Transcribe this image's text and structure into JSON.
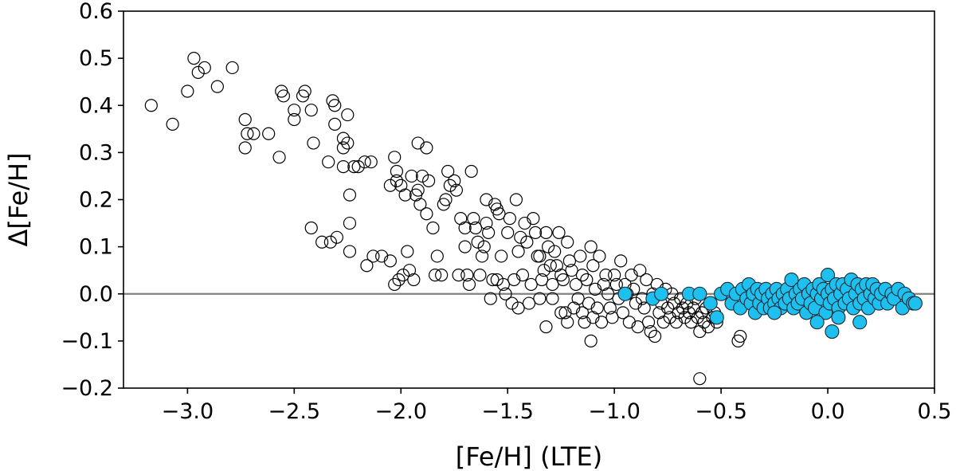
{
  "chart_data": {
    "type": "scatter",
    "title": "",
    "xlabel": "[Fe/H] (LTE)",
    "ylabel": "Δ[Fe/H]",
    "xlim": [
      -3.3,
      0.5
    ],
    "ylim": [
      -0.2,
      0.6
    ],
    "xticks": [
      -3.0,
      -2.5,
      -2.0,
      -1.5,
      -1.0,
      -0.5,
      0.0,
      0.5
    ],
    "xtick_labels": [
      "−3.0",
      "−2.5",
      "−2.0",
      "−1.5",
      "−1.0",
      "−0.5",
      "0.0",
      "0.5"
    ],
    "yticks": [
      -0.2,
      -0.1,
      0.0,
      0.1,
      0.2,
      0.3,
      0.4,
      0.5,
      0.6
    ],
    "ytick_labels": [
      "−0.2",
      "−0.1",
      "0.0",
      "0.1",
      "0.2",
      "0.3",
      "0.4",
      "0.5",
      "0.6"
    ],
    "reference_line": {
      "y": 0.0,
      "color": "#808080"
    },
    "grid": false,
    "series": [
      {
        "name": "open",
        "marker": "open-circle",
        "color": "#000000",
        "points": [
          [
            -3.17,
            0.4
          ],
          [
            -3.07,
            0.36
          ],
          [
            -2.97,
            0.5
          ],
          [
            -2.95,
            0.47
          ],
          [
            -2.92,
            0.48
          ],
          [
            -3.0,
            0.43
          ],
          [
            -2.86,
            0.44
          ],
          [
            -2.79,
            0.48
          ],
          [
            -2.73,
            0.37
          ],
          [
            -2.72,
            0.34
          ],
          [
            -2.73,
            0.31
          ],
          [
            -2.69,
            0.34
          ],
          [
            -2.62,
            0.34
          ],
          [
            -2.57,
            0.29
          ],
          [
            -2.56,
            0.43
          ],
          [
            -2.55,
            0.42
          ],
          [
            -2.5,
            0.39
          ],
          [
            -2.5,
            0.37
          ],
          [
            -2.46,
            0.42
          ],
          [
            -2.45,
            0.43
          ],
          [
            -2.42,
            0.39
          ],
          [
            -2.41,
            0.32
          ],
          [
            -2.42,
            0.14
          ],
          [
            -2.37,
            0.11
          ],
          [
            -2.33,
            0.11
          ],
          [
            -2.34,
            0.28
          ],
          [
            -2.32,
            0.41
          ],
          [
            -2.31,
            0.4
          ],
          [
            -2.31,
            0.36
          ],
          [
            -2.3,
            0.12
          ],
          [
            -2.27,
            0.33
          ],
          [
            -2.27,
            0.31
          ],
          [
            -2.25,
            0.32
          ],
          [
            -2.27,
            0.27
          ],
          [
            -2.25,
            0.38
          ],
          [
            -2.24,
            0.21
          ],
          [
            -2.24,
            0.15
          ],
          [
            -2.24,
            0.09
          ],
          [
            -2.22,
            0.27
          ],
          [
            -2.2,
            0.27
          ],
          [
            -2.17,
            0.28
          ],
          [
            -2.14,
            0.28
          ],
          [
            -2.16,
            0.06
          ],
          [
            -2.13,
            0.08
          ],
          [
            -2.09,
            0.08
          ],
          [
            -2.05,
            0.07
          ],
          [
            -2.03,
            0.02
          ],
          [
            -2.01,
            0.03
          ],
          [
            -1.99,
            0.04
          ],
          [
            -1.97,
            0.09
          ],
          [
            -1.96,
            0.05
          ],
          [
            -1.94,
            0.03
          ],
          [
            -2.05,
            0.23
          ],
          [
            -2.03,
            0.29
          ],
          [
            -2.02,
            0.26
          ],
          [
            -2.02,
            0.24
          ],
          [
            -2.0,
            0.23
          ],
          [
            -1.98,
            0.21
          ],
          [
            -1.95,
            0.25
          ],
          [
            -1.93,
            0.21
          ],
          [
            -1.92,
            0.22
          ],
          [
            -1.91,
            0.19
          ],
          [
            -1.92,
            0.32
          ],
          [
            -1.88,
            0.31
          ],
          [
            -1.9,
            0.25
          ],
          [
            -1.88,
            0.17
          ],
          [
            -1.87,
            0.24
          ],
          [
            -1.85,
            0.14
          ],
          [
            -1.84,
            0.04
          ],
          [
            -1.83,
            0.08
          ],
          [
            -1.81,
            0.04
          ],
          [
            -1.8,
            0.19
          ],
          [
            -1.79,
            0.2
          ],
          [
            -1.78,
            0.26
          ],
          [
            -1.77,
            0.23
          ],
          [
            -1.75,
            0.24
          ],
          [
            -1.74,
            0.22
          ],
          [
            -1.73,
            0.04
          ],
          [
            -1.72,
            0.16
          ],
          [
            -1.7,
            0.14
          ],
          [
            -1.7,
            0.1
          ],
          [
            -1.69,
            0.04
          ],
          [
            -1.68,
            0.02
          ],
          [
            -1.67,
            0.26
          ],
          [
            -1.66,
            0.16
          ],
          [
            -1.65,
            0.14
          ],
          [
            -1.64,
            0.11
          ],
          [
            -1.63,
            0.04
          ],
          [
            -1.62,
            0.08
          ],
          [
            -1.61,
            0.1
          ],
          [
            -1.6,
            0.2
          ],
          [
            -1.6,
            0.15
          ],
          [
            -1.59,
            0.13
          ],
          [
            -1.58,
            -0.01
          ],
          [
            -1.57,
            0.03
          ],
          [
            -1.56,
            0.19
          ],
          [
            -1.55,
            0.18
          ],
          [
            -1.55,
            0.03
          ],
          [
            -1.54,
            0.17
          ],
          [
            -1.53,
            0.08
          ],
          [
            -1.52,
            0.02
          ],
          [
            -1.51,
            0.0
          ],
          [
            -1.5,
            0.13
          ],
          [
            -1.49,
            0.16
          ],
          [
            -1.48,
            -0.02
          ],
          [
            -1.47,
            0.03
          ],
          [
            -1.46,
            0.2
          ],
          [
            -1.45,
            0.09
          ],
          [
            -1.45,
            -0.03
          ],
          [
            -1.44,
            0.12
          ],
          [
            -1.43,
            0.04
          ],
          [
            -1.42,
            0.15
          ],
          [
            -1.41,
            0.11
          ],
          [
            -1.4,
            -0.02
          ],
          [
            -1.39,
            0.02
          ],
          [
            -1.38,
            0.16
          ],
          [
            -1.37,
            0.13
          ],
          [
            -1.36,
            0.08
          ],
          [
            -1.35,
            0.08
          ],
          [
            -1.35,
            -0.01
          ],
          [
            -1.34,
            0.03
          ],
          [
            -1.33,
            0.05
          ],
          [
            -1.32,
            0.13
          ],
          [
            -1.31,
            0.1
          ],
          [
            -1.3,
            0.06
          ],
          [
            -1.29,
            0.02
          ],
          [
            -1.29,
            -0.01
          ],
          [
            -1.28,
            0.09
          ],
          [
            -1.27,
            0.06
          ],
          [
            -1.26,
            0.13
          ],
          [
            -1.25,
            0.04
          ],
          [
            -1.25,
            -0.04
          ],
          [
            -1.24,
            0.03
          ],
          [
            -1.23,
            -0.04
          ],
          [
            -1.22,
            0.11
          ],
          [
            -1.21,
            0.07
          ],
          [
            -1.2,
            0.05
          ],
          [
            -1.19,
            -0.03
          ],
          [
            -1.18,
            0.02
          ],
          [
            -1.17,
            -0.01
          ],
          [
            -1.16,
            0.08
          ],
          [
            -1.15,
            0.04
          ],
          [
            -1.15,
            -0.04
          ],
          [
            -1.14,
            -0.06
          ],
          [
            -1.13,
            0.03
          ],
          [
            -1.12,
            -0.02
          ],
          [
            -1.11,
            0.1
          ],
          [
            -1.1,
            0.06
          ],
          [
            -1.1,
            -0.05
          ],
          [
            -1.09,
            0.01
          ],
          [
            -1.08,
            -0.03
          ],
          [
            -1.07,
            0.08
          ],
          [
            -1.06,
            -0.06
          ],
          [
            -1.05,
            0.02
          ],
          [
            -1.04,
            0.04
          ],
          [
            -1.03,
            0.0
          ],
          [
            -1.02,
            -0.03
          ],
          [
            -1.01,
            -0.05
          ],
          [
            -1.0,
            0.04
          ],
          [
            -0.99,
            0.02
          ],
          [
            -0.98,
            -0.01
          ],
          [
            -0.97,
            0.07
          ],
          [
            -0.96,
            -0.04
          ],
          [
            -0.95,
            0.02
          ],
          [
            -0.94,
            0.0
          ],
          [
            -0.93,
            -0.06
          ],
          [
            -0.92,
            0.04
          ],
          [
            -0.91,
            0.01
          ],
          [
            -0.9,
            -0.02
          ],
          [
            -0.89,
            -0.07
          ],
          [
            -0.88,
            0.05
          ],
          [
            -0.87,
            -0.01
          ],
          [
            -0.86,
            -0.03
          ],
          [
            -0.85,
            0.03
          ],
          [
            -0.84,
            -0.06
          ],
          [
            -0.83,
            -0.08
          ],
          [
            -0.82,
            0.0
          ],
          [
            -0.81,
            -0.09
          ],
          [
            -0.8,
            0.02
          ],
          [
            -0.79,
            -0.04
          ],
          [
            -0.78,
            -0.02
          ],
          [
            -0.77,
            -0.06
          ],
          [
            -0.76,
            0.01
          ],
          [
            -0.75,
            -0.03
          ],
          [
            -0.74,
            -0.05
          ],
          [
            -0.73,
            0.0
          ],
          [
            -0.72,
            -0.02
          ],
          [
            -0.71,
            -0.06
          ],
          [
            -0.7,
            -0.04
          ],
          [
            -0.69,
            -0.01
          ],
          [
            -0.68,
            -0.03
          ],
          [
            -0.67,
            -0.05
          ],
          [
            -0.66,
            -0.02
          ],
          [
            -0.65,
            -0.04
          ],
          [
            -0.64,
            -0.06
          ],
          [
            -0.63,
            -0.03
          ],
          [
            -0.62,
            -0.01
          ],
          [
            -0.61,
            -0.05
          ],
          [
            -0.6,
            -0.18
          ],
          [
            -0.6,
            -0.08
          ],
          [
            -0.59,
            -0.04
          ],
          [
            -0.58,
            -0.06
          ],
          [
            -0.57,
            -0.03
          ],
          [
            -0.56,
            -0.07
          ],
          [
            -0.55,
            -0.02
          ],
          [
            -0.54,
            -0.05
          ],
          [
            -0.53,
            -0.04
          ],
          [
            -0.52,
            -0.06
          ],
          [
            -0.42,
            -0.1
          ],
          [
            -0.41,
            -0.09
          ],
          [
            -1.11,
            -0.1
          ],
          [
            -1.32,
            -0.07
          ],
          [
            -1.22,
            -0.06
          ]
        ]
      },
      {
        "name": "filled",
        "marker": "filled-circle",
        "color": "#1ec0f0",
        "points": [
          [
            -0.95,
            0.0
          ],
          [
            -0.82,
            -0.01
          ],
          [
            -0.78,
            0.0
          ],
          [
            -0.65,
            0.0
          ],
          [
            -0.6,
            0.0
          ],
          [
            -0.55,
            -0.02
          ],
          [
            -0.52,
            -0.05
          ],
          [
            -0.5,
            0.0
          ],
          [
            -0.47,
            0.01
          ],
          [
            -0.45,
            -0.02
          ],
          [
            -0.43,
            0.0
          ],
          [
            -0.41,
            -0.03
          ],
          [
            -0.4,
            0.01
          ],
          [
            -0.38,
            -0.01
          ],
          [
            -0.37,
            0.02
          ],
          [
            -0.36,
            -0.02
          ],
          [
            -0.35,
            0.0
          ],
          [
            -0.34,
            -0.04
          ],
          [
            -0.33,
            0.01
          ],
          [
            -0.32,
            -0.02
          ],
          [
            -0.31,
            0.0
          ],
          [
            -0.3,
            -0.03
          ],
          [
            -0.29,
            0.01
          ],
          [
            -0.28,
            -0.01
          ],
          [
            -0.27,
            -0.03
          ],
          [
            -0.26,
            0.0
          ],
          [
            -0.25,
            -0.02
          ],
          [
            -0.24,
            0.01
          ],
          [
            -0.23,
            -0.01
          ],
          [
            -0.22,
            -0.03
          ],
          [
            -0.21,
            0.0
          ],
          [
            -0.2,
            -0.02
          ],
          [
            -0.19,
            0.01
          ],
          [
            -0.18,
            -0.01
          ],
          [
            -0.17,
            0.03
          ],
          [
            -0.16,
            -0.03
          ],
          [
            -0.15,
            0.0
          ],
          [
            -0.14,
            -0.02
          ],
          [
            -0.13,
            0.01
          ],
          [
            -0.12,
            -0.01
          ],
          [
            -0.11,
            0.02
          ],
          [
            -0.1,
            -0.04
          ],
          [
            -0.09,
            0.0
          ],
          [
            -0.08,
            -0.02
          ],
          [
            -0.07,
            0.01
          ],
          [
            -0.06,
            -0.03
          ],
          [
            -0.05,
            0.0
          ],
          [
            -0.04,
            0.02
          ],
          [
            -0.03,
            -0.01
          ],
          [
            -0.02,
            0.01
          ],
          [
            -0.01,
            -0.04
          ],
          [
            0.0,
            0.04
          ],
          [
            0.0,
            0.0
          ],
          [
            0.01,
            -0.02
          ],
          [
            0.02,
            0.01
          ],
          [
            0.02,
            -0.08
          ],
          [
            0.03,
            -0.01
          ],
          [
            0.04,
            0.02
          ],
          [
            0.05,
            -0.03
          ],
          [
            0.06,
            0.0
          ],
          [
            0.07,
            0.02
          ],
          [
            0.08,
            -0.02
          ],
          [
            0.09,
            0.01
          ],
          [
            0.1,
            -0.01
          ],
          [
            0.11,
            0.03
          ],
          [
            0.12,
            -0.03
          ],
          [
            0.13,
            0.0
          ],
          [
            0.14,
            0.02
          ],
          [
            0.15,
            -0.02
          ],
          [
            0.16,
            0.01
          ],
          [
            0.17,
            -0.01
          ],
          [
            0.18,
            0.02
          ],
          [
            0.19,
            -0.03
          ],
          [
            0.2,
            0.0
          ],
          [
            0.21,
            0.02
          ],
          [
            0.22,
            -0.01
          ],
          [
            0.23,
            0.01
          ],
          [
            0.24,
            -0.02
          ],
          [
            0.25,
            0.0
          ],
          [
            0.27,
            0.01
          ],
          [
            0.28,
            -0.02
          ],
          [
            0.3,
            0.0
          ],
          [
            0.31,
            -0.01
          ],
          [
            0.33,
            0.01
          ],
          [
            0.35,
            -0.03
          ],
          [
            0.36,
            0.0
          ],
          [
            0.38,
            -0.01
          ],
          [
            0.4,
            -0.02
          ],
          [
            0.41,
            -0.02
          ],
          [
            -0.05,
            -0.06
          ],
          [
            0.15,
            -0.06
          ],
          [
            -0.25,
            -0.04
          ],
          [
            0.05,
            -0.05
          ]
        ]
      }
    ]
  }
}
